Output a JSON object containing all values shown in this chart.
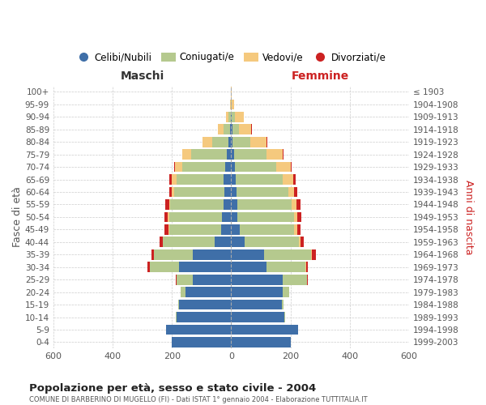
{
  "age_groups": [
    "0-4",
    "5-9",
    "10-14",
    "15-19",
    "20-24",
    "25-29",
    "30-34",
    "35-39",
    "40-44",
    "45-49",
    "50-54",
    "55-59",
    "60-64",
    "65-69",
    "70-74",
    "75-79",
    "80-84",
    "85-89",
    "90-94",
    "95-99",
    "100+"
  ],
  "birth_years": [
    "1999-2003",
    "1994-1998",
    "1989-1993",
    "1984-1988",
    "1979-1983",
    "1974-1978",
    "1969-1973",
    "1964-1968",
    "1959-1963",
    "1954-1958",
    "1949-1953",
    "1944-1948",
    "1939-1943",
    "1934-1938",
    "1929-1933",
    "1924-1928",
    "1919-1923",
    "1914-1918",
    "1909-1913",
    "1904-1908",
    "≤ 1903"
  ],
  "maschi": {
    "celibi": [
      200,
      220,
      185,
      175,
      155,
      130,
      175,
      130,
      55,
      35,
      30,
      25,
      22,
      25,
      20,
      15,
      8,
      5,
      2,
      0,
      0
    ],
    "coniugati": [
      0,
      1,
      3,
      5,
      15,
      55,
      100,
      130,
      175,
      175,
      180,
      180,
      170,
      160,
      145,
      120,
      55,
      20,
      8,
      2,
      0
    ],
    "vedovi": [
      0,
      0,
      0,
      0,
      0,
      0,
      0,
      0,
      1,
      2,
      3,
      5,
      8,
      15,
      25,
      30,
      35,
      20,
      8,
      2,
      0
    ],
    "divorziati": [
      0,
      0,
      0,
      0,
      0,
      3,
      8,
      10,
      10,
      12,
      12,
      12,
      10,
      8,
      3,
      0,
      0,
      0,
      0,
      0,
      0
    ]
  },
  "femmine": {
    "nubili": [
      200,
      225,
      180,
      170,
      175,
      175,
      120,
      110,
      45,
      28,
      22,
      20,
      18,
      15,
      12,
      10,
      5,
      5,
      2,
      0,
      0
    ],
    "coniugate": [
      0,
      2,
      3,
      8,
      20,
      80,
      130,
      160,
      185,
      185,
      190,
      185,
      175,
      160,
      140,
      110,
      60,
      22,
      10,
      2,
      0
    ],
    "vedove": [
      0,
      0,
      0,
      0,
      0,
      0,
      2,
      3,
      5,
      10,
      12,
      15,
      20,
      35,
      50,
      55,
      55,
      40,
      30,
      8,
      2
    ],
    "divorziate": [
      0,
      0,
      0,
      0,
      0,
      3,
      8,
      12,
      10,
      12,
      12,
      15,
      10,
      8,
      3,
      2,
      2,
      2,
      0,
      0,
      0
    ]
  },
  "colors": {
    "celibi": "#3f6fa8",
    "coniugati": "#b5c98e",
    "vedovi": "#f5c97e",
    "divorziati": "#cc2222"
  },
  "title": "Popolazione per età, sesso e stato civile - 2004",
  "subtitle": "COMUNE DI BARBERINO DI MUGELLO (FI) - Dati ISTAT 1° gennaio 2004 - Elaborazione TUTTITALIA.IT",
  "xlabel_left": "Maschi",
  "xlabel_right": "Femmine",
  "ylabel_left": "Fasce di età",
  "ylabel_right": "Anni di nascita",
  "xlim": 600,
  "bg_color": "#ffffff",
  "grid_color": "#cccccc",
  "legend_labels": [
    "Celibi/Nubili",
    "Coniugati/e",
    "Vedovi/e",
    "Divorziati/e"
  ]
}
